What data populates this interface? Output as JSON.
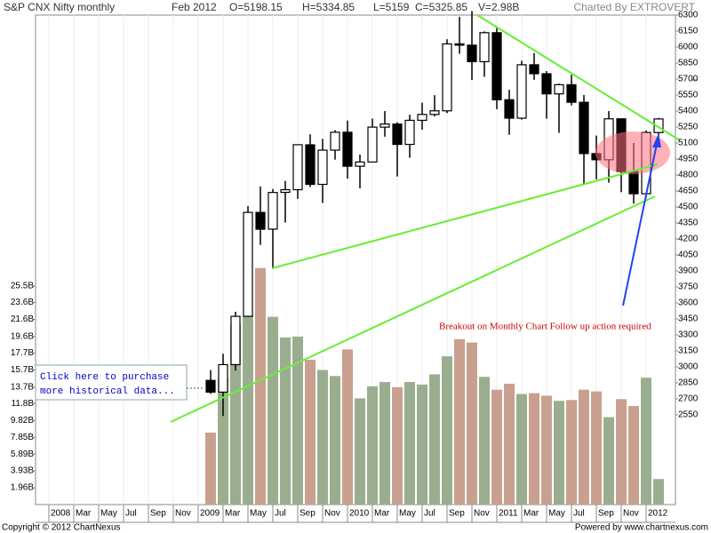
{
  "chart_data": {
    "type": "candlestick",
    "title": "S&P CNX Nifty monthly",
    "period": "Feb 2012",
    "quote_labels": [
      "O=5198.15",
      "H=5334.85",
      "L=5159",
      "C=5325.85",
      "V=2.98B"
    ],
    "credit": "Charted By EXTROVERT",
    "categories": [
      "2008",
      null,
      "Mar",
      null,
      "May",
      null,
      "Jul",
      null,
      "Sep",
      null,
      "Nov",
      null,
      "2009",
      null,
      "Mar",
      null,
      "May",
      null,
      "Jul",
      null,
      "Sep",
      null,
      "Nov",
      null,
      "2010",
      null,
      "Mar",
      null,
      "May",
      null,
      "Jul",
      null,
      "Sep",
      null,
      "Nov",
      null,
      "2011",
      null,
      "Mar",
      null,
      "May",
      null,
      "Jul",
      null,
      "Sep",
      null,
      "Nov",
      null,
      "2012",
      null
    ],
    "open": [
      null,
      null,
      null,
      null,
      null,
      null,
      null,
      null,
      null,
      null,
      null,
      null,
      null,
      2873,
      2763,
      3021,
      3474,
      4449,
      4292,
      4637,
      4662,
      5083,
      4712,
      5033,
      5201,
      4882,
      4922,
      5249,
      5278,
      5087,
      5313,
      5368,
      5402,
      6030,
      6018,
      5863,
      6135,
      5506,
      5333,
      5834,
      5750,
      5561,
      5647,
      5482,
      5001,
      4943,
      5327,
      4832,
      4624,
      5198.15
    ],
    "high": [
      null,
      null,
      null,
      null,
      null,
      null,
      null,
      null,
      null,
      null,
      null,
      null,
      null,
      2970,
      3123,
      3517,
      4509,
      4693,
      4669,
      4744,
      5088,
      5182,
      5139,
      5221,
      5311,
      4992,
      5329,
      5400,
      5295,
      5366,
      5478,
      5549,
      6074,
      6284,
      6338,
      6147,
      6182,
      5599,
      5872,
      5944,
      5775,
      5657,
      5741,
      5551,
      5170,
      5400,
      5327,
      5100,
      5217,
      5334.85
    ],
    "low": [
      null,
      null,
      null,
      null,
      null,
      null,
      null,
      null,
      null,
      null,
      null,
      null,
      null,
      2747,
      2539,
      2965,
      3468,
      4144,
      3918,
      4354,
      4576,
      4687,
      4538,
      4944,
      4766,
      4675,
      4922,
      5160,
      4786,
      4962,
      5225,
      5349,
      5380,
      5937,
      5691,
      5721,
      5417,
      5178,
      5320,
      5693,
      5328,
      5196,
      5453,
      4720,
      4759,
      4728,
      4639,
      4531,
      4588,
      5159
    ],
    "close": [
      null,
      null,
      null,
      null,
      null,
      null,
      null,
      null,
      null,
      null,
      null,
      null,
      null,
      2763,
      3021,
      3474,
      4449,
      4291,
      4636,
      4662,
      5084,
      4712,
      5033,
      5201,
      4882,
      4922,
      5249,
      5278,
      5087,
      5313,
      5368,
      5402,
      6030,
      6018,
      5863,
      6135,
      5506,
      5333,
      5834,
      5750,
      5561,
      5647,
      5482,
      5001,
      4943,
      5327,
      4832,
      4624,
      5199,
      5325.85
    ],
    "volume": [
      null,
      null,
      null,
      null,
      null,
      null,
      null,
      null,
      null,
      null,
      null,
      null,
      null,
      8.4,
      14.8,
      21.0,
      22.1,
      27.6,
      21.9,
      19.5,
      19.6,
      16.9,
      15.7,
      15.0,
      18.1,
      12.4,
      13.8,
      14.3,
      13.7,
      14.3,
      14.0,
      15.2,
      17.3,
      19.3,
      18.9,
      14.9,
      13.4,
      14.1,
      12.9,
      13.0,
      12.7,
      12.1,
      12.2,
      13.4,
      13.2,
      10.2,
      12.3,
      11.5,
      14.8,
      2.98
    ],
    "up_color": "#9aae8f",
    "down_color": "#c9a090",
    "ylim": [
      1708,
      6300
    ],
    "yticks": [
      2550,
      2700,
      2850,
      3000,
      3150,
      3300,
      3450,
      3600,
      3750,
      3900,
      4050,
      4200,
      4350,
      4500,
      4650,
      4800,
      4950,
      5100,
      5250,
      5400,
      5550,
      5700,
      5850,
      6000,
      6150,
      6300
    ],
    "y2lim": [
      0,
      57.1
    ],
    "y2ticks": [
      {
        "value": 1.96,
        "label": "1.96B"
      },
      {
        "value": 3.93,
        "label": "3.93B"
      },
      {
        "value": 5.89,
        "label": "5.89B"
      },
      {
        "value": 7.85,
        "label": "7.85B"
      },
      {
        "value": 9.82,
        "label": "9.82B"
      },
      {
        "value": 11.8,
        "label": "11.8B"
      },
      {
        "value": 13.7,
        "label": "13.7B"
      },
      {
        "value": 15.7,
        "label": "15.7B"
      },
      {
        "value": 17.7,
        "label": "17.7B"
      },
      {
        "value": 19.6,
        "label": "19.6B"
      },
      {
        "value": 21.6,
        "label": "21.6B"
      },
      {
        "value": 23.6,
        "label": "23.6B"
      },
      {
        "value": 25.5,
        "label": "25.5B"
      }
    ],
    "annotation": "Breakout on  Monthly Chart Follow up action required",
    "purchase_link": [
      "Click here to purchase",
      "more historical data..."
    ],
    "footer_left": "Copyright © 2012 ChartNexus",
    "footer_right": "Powered by www.chartnexus.com"
  }
}
